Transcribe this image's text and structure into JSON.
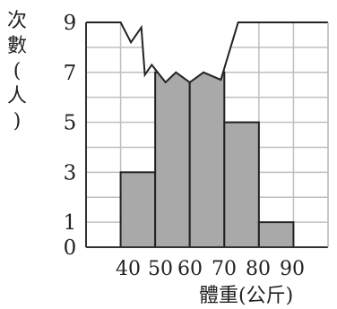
{
  "chart_data": {
    "type": "bar",
    "ylabel_chars": [
      "次",
      "數",
      "(",
      "人",
      ")"
    ],
    "xlabel": "體重(公斤)",
    "x_edges": [
      40,
      50,
      60,
      70,
      80,
      90
    ],
    "x_tick_labels": [
      "40",
      "50",
      "60",
      "70",
      "80",
      "90"
    ],
    "y_tick_labels": [
      "0",
      "1",
      "3",
      "5",
      "7",
      "9"
    ],
    "y_ticks": [
      0,
      1,
      3,
      5,
      7,
      9
    ],
    "ylim": [
      0,
      9
    ],
    "grid": true,
    "bars": [
      {
        "from": 40,
        "to": 50,
        "value": 3
      },
      {
        "from": 50,
        "to": 60,
        "value": 7
      },
      {
        "from": 60,
        "to": 70,
        "value": 7
      },
      {
        "from": 70,
        "to": 80,
        "value": 5
      },
      {
        "from": 80,
        "to": 90,
        "value": 1
      }
    ],
    "torn_edge_top": [
      [
        30,
        9
      ],
      [
        40,
        9
      ],
      [
        43,
        8.2
      ],
      [
        46,
        8.8
      ],
      [
        47,
        6.9
      ],
      [
        49,
        7.3
      ],
      [
        53,
        6.6
      ],
      [
        56,
        7.0
      ],
      [
        60,
        6.6
      ],
      [
        64,
        7.0
      ],
      [
        69,
        6.7
      ],
      [
        74,
        9
      ],
      [
        90,
        9
      ],
      [
        100,
        9
      ]
    ],
    "colors": {
      "bar": "#a9a9a9",
      "grid": "#bfbfbf",
      "axis": "#333333",
      "mask": "#ffffff"
    }
  }
}
